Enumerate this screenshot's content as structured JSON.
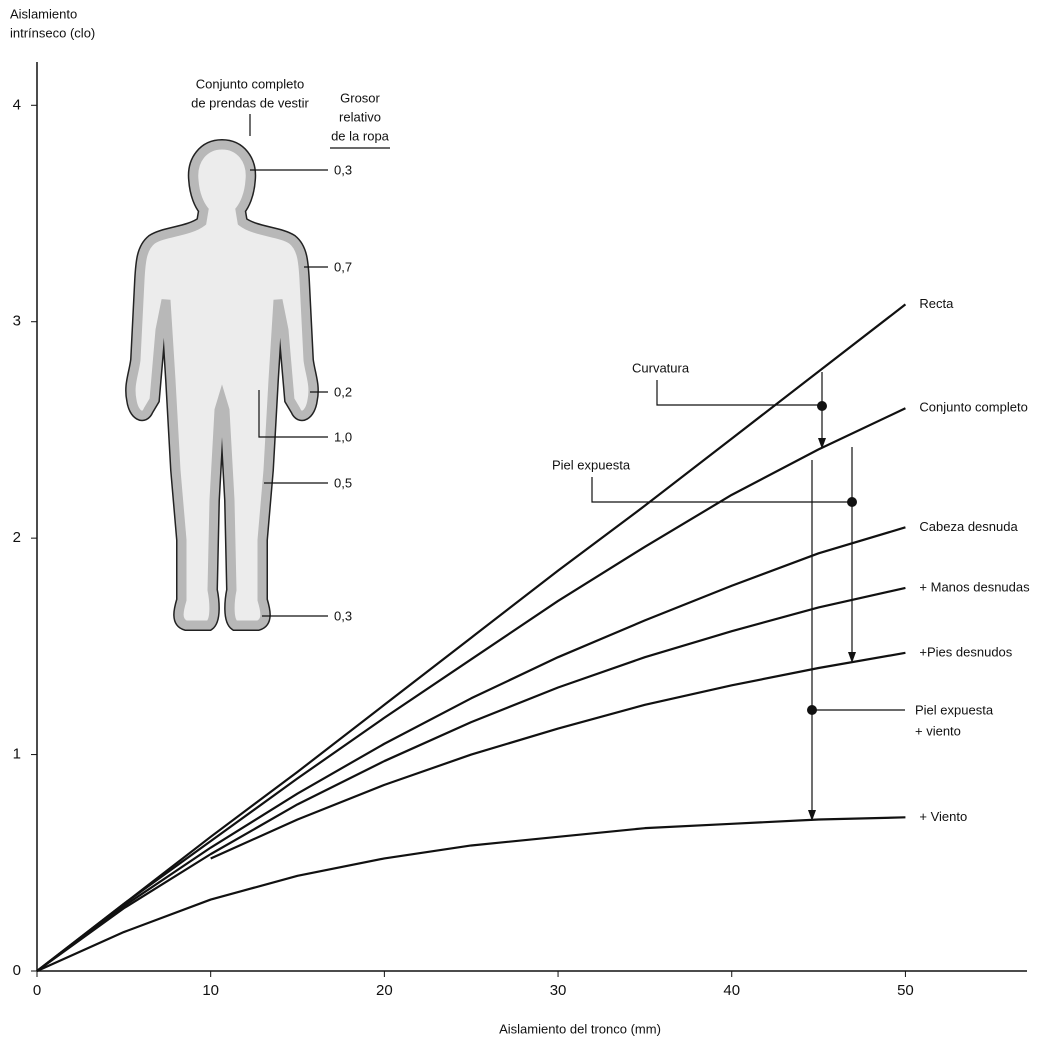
{
  "chart_data": {
    "type": "line",
    "ylabel": [
      "Aislamiento",
      "intrínseco (clo)"
    ],
    "xlabel": "Aislamiento del tronco (mm)",
    "x": [
      0,
      5,
      10,
      15,
      20,
      25,
      30,
      35,
      40,
      45,
      50
    ],
    "xlim": [
      0,
      57
    ],
    "ylim": [
      0,
      4.2
    ],
    "xticks": [
      0,
      10,
      20,
      30,
      40,
      50
    ],
    "yticks": [
      0,
      1,
      2,
      3,
      4
    ],
    "grid": false,
    "series": [
      {
        "name": "Recta",
        "color": "#111111",
        "values": [
          0,
          0.31,
          0.62,
          0.92,
          1.23,
          1.54,
          1.85,
          2.15,
          2.46,
          2.77,
          3.08
        ]
      },
      {
        "name": "Conjunto completo",
        "color": "#111111",
        "values": [
          0,
          0.31,
          0.6,
          0.89,
          1.17,
          1.44,
          1.71,
          1.96,
          2.2,
          2.41,
          2.6
        ]
      },
      {
        "name": "Cabeza desnuda",
        "color": "#111111",
        "values": [
          0,
          0.3,
          0.57,
          0.82,
          1.05,
          1.26,
          1.45,
          1.62,
          1.78,
          1.93,
          2.05
        ]
      },
      {
        "name": "+ Manos desnudas",
        "color": "#111111",
        "values": [
          0,
          0.29,
          0.54,
          0.77,
          0.97,
          1.15,
          1.31,
          1.45,
          1.57,
          1.68,
          1.77
        ]
      },
      {
        "name": "+Pies desnudos",
        "color": "#111111",
        "values": [
          null,
          null,
          0.52,
          0.7,
          0.86,
          1.0,
          1.12,
          1.23,
          1.32,
          1.4,
          1.47
        ]
      },
      {
        "name": "+ Viento",
        "color": "#111111",
        "values": [
          0,
          0.18,
          0.33,
          0.44,
          0.52,
          0.58,
          0.62,
          0.66,
          0.68,
          0.7,
          0.71
        ]
      }
    ],
    "annotations": {
      "curvatura": "Curvatura",
      "piel_expuesta": "Piel expuesta",
      "piel_viento": [
        "Piel expuesta",
        "+ viento"
      ]
    }
  },
  "figure": {
    "title": [
      "Conjunto completo",
      "de prendas de vestir"
    ],
    "thickness_title": [
      "Grosor",
      "relativo",
      "de la ropa"
    ],
    "thickness": [
      "0,3",
      "0,7",
      "0,2",
      "1,0",
      "0,5",
      "0,3"
    ]
  }
}
